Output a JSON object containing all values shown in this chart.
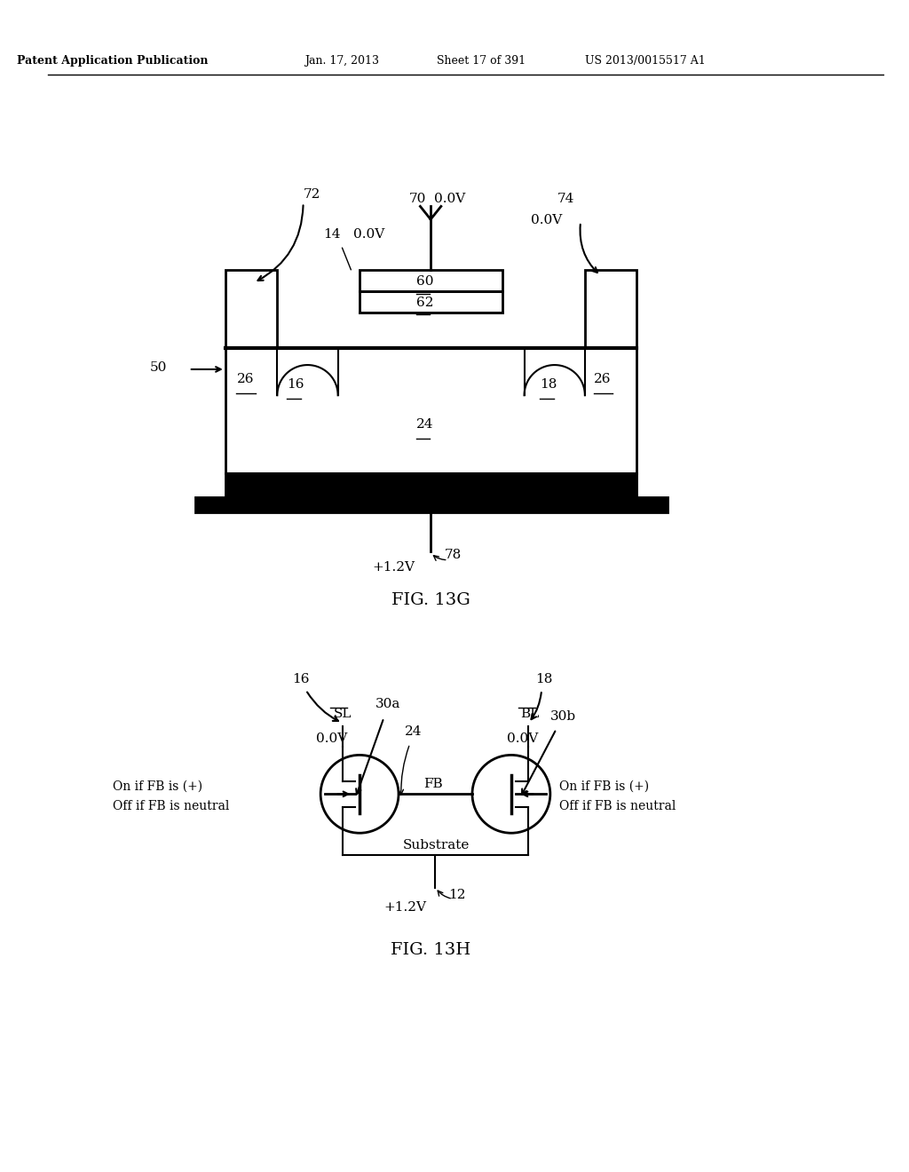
{
  "bg_color": "#ffffff",
  "header_text": "Patent Application Publication",
  "header_date": "Jan. 17, 2013",
  "header_sheet": "Sheet 17 of 391",
  "header_patent": "US 2013/0015517 A1",
  "fig13g_label": "FIG. 13G",
  "fig13h_label": "FIG. 13H"
}
